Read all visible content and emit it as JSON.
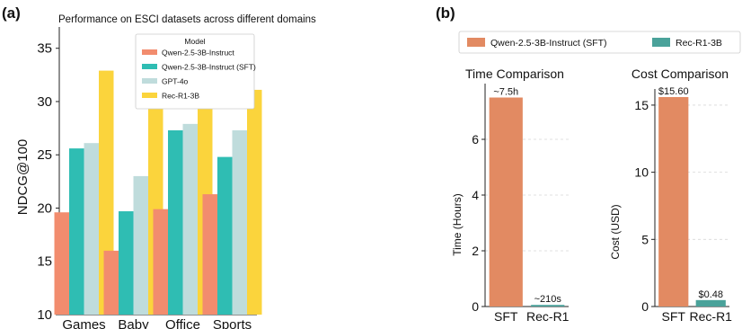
{
  "panel_a": {
    "label": "(a)",
    "chart_data": {
      "type": "bar",
      "title": "Performance on ESCI datasets across different domains",
      "xlabel": "",
      "ylabel": "NDCG@100",
      "ylim": [
        10,
        37
      ],
      "yticks": [
        "10",
        "15",
        "20",
        "25",
        "30",
        "35"
      ],
      "categories": [
        "Games",
        "Baby",
        "Office",
        "Sports"
      ],
      "legend_title": "Model",
      "legend_position": "top-center",
      "grid": false,
      "series": [
        {
          "name": "Qwen-2.5-3B-Instruct",
          "color": "#f28c6e",
          "values": [
            19.6,
            16.0,
            19.9,
            21.3
          ]
        },
        {
          "name": "Qwen-2.5-3B-Instruct (SFT)",
          "color": "#2fbdb3",
          "values": [
            25.6,
            19.7,
            27.3,
            24.8
          ]
        },
        {
          "name": "GPT-4o",
          "color": "#bfdcdc",
          "values": [
            26.1,
            23.0,
            27.9,
            27.3
          ]
        },
        {
          "name": "Rec-R1-3B",
          "color": "#fbd43c",
          "values": [
            32.9,
            29.6,
            35.0,
            31.1
          ]
        }
      ]
    }
  },
  "panel_b": {
    "label": "(b)",
    "legend": [
      {
        "name": "Qwen-2.5-3B-Instruct (SFT)",
        "color": "#e28a62"
      },
      {
        "name": "Rec-R1-3B",
        "color": "#4aa29a"
      }
    ],
    "charts": [
      {
        "type": "bar",
        "title": "Time Comparison",
        "ylabel": "Time (Hours)",
        "ylim": [
          0,
          8
        ],
        "yticks": [
          "0",
          "2",
          "4",
          "6"
        ],
        "categories": [
          "SFT",
          "Rec-R1"
        ],
        "values": [
          7.5,
          0.058
        ],
        "data_labels": [
          "~7.5h",
          "~210s"
        ],
        "colors": [
          "#e28a62",
          "#4aa29a"
        ],
        "grid": true
      },
      {
        "type": "bar",
        "title": "Cost Comparison",
        "ylabel": "Cost (USD)",
        "ylim": [
          0,
          16.2
        ],
        "yticks": [
          "0",
          "5",
          "10",
          "15"
        ],
        "categories": [
          "SFT",
          "Rec-R1"
        ],
        "values": [
          15.6,
          0.48
        ],
        "data_labels": [
          "$15.60",
          "$0.48"
        ],
        "colors": [
          "#e28a62",
          "#4aa29a"
        ],
        "grid": true
      }
    ]
  }
}
